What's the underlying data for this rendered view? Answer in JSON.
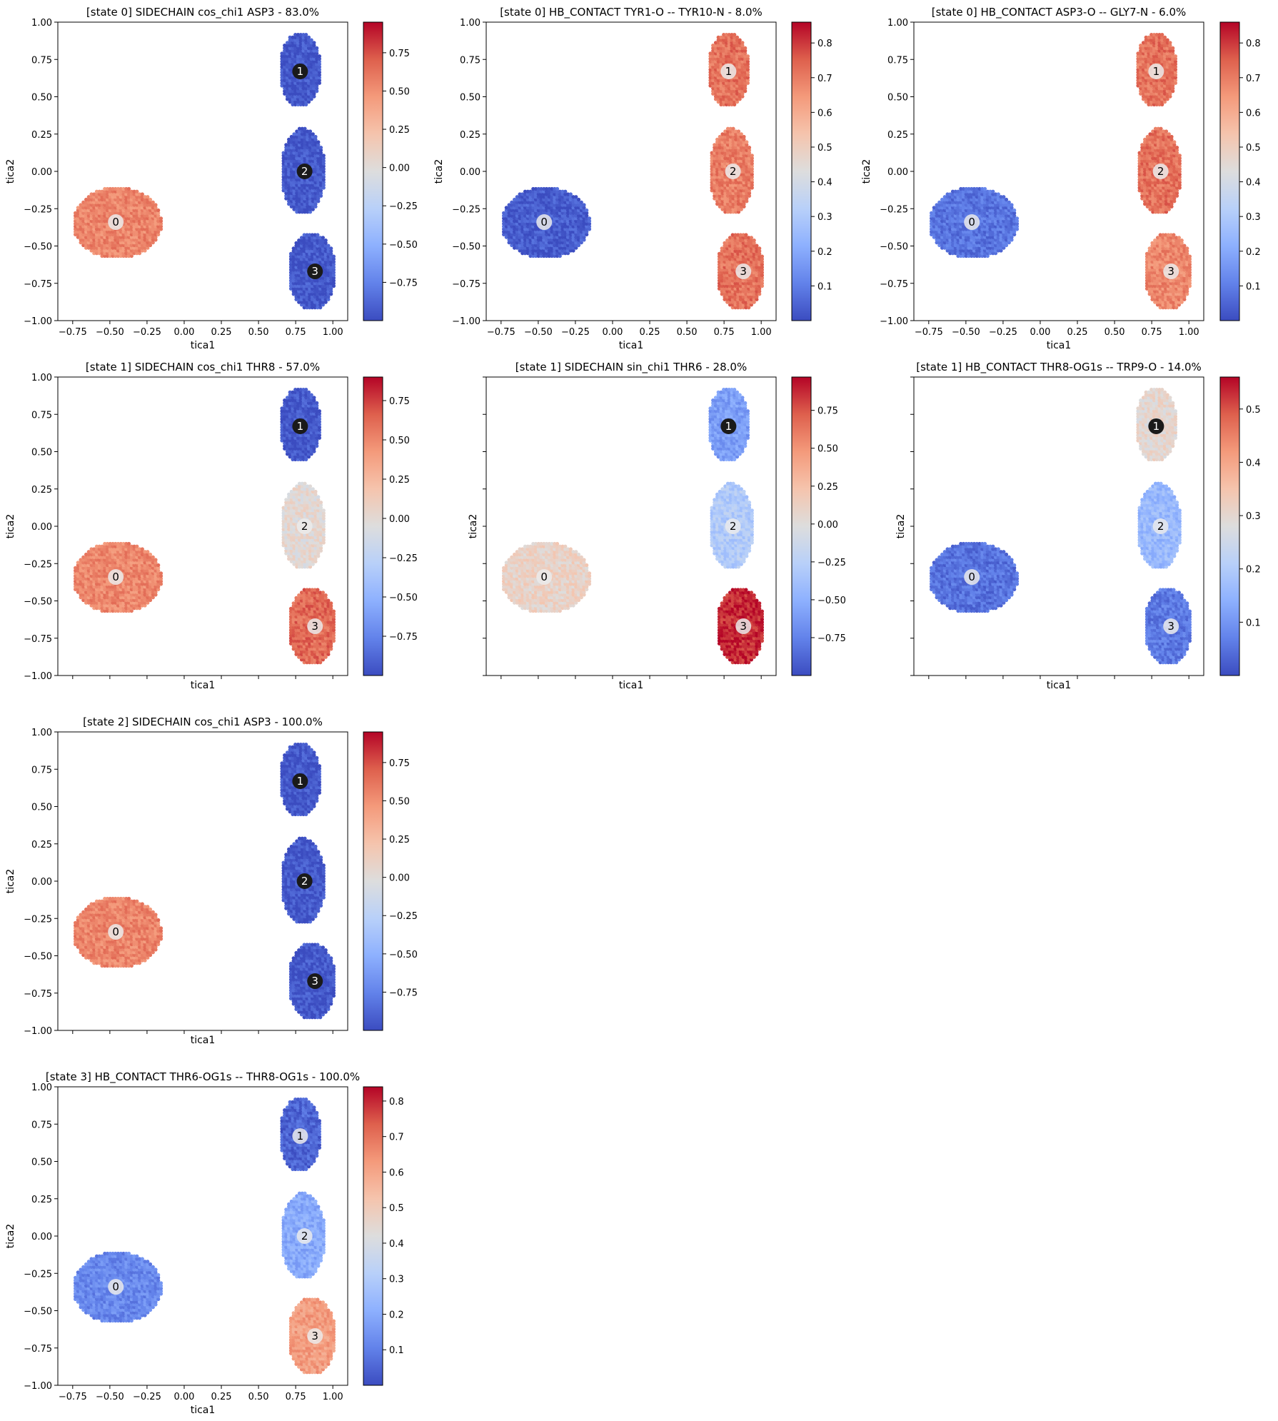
{
  "chart_data": [
    {
      "type": "scatter",
      "title": "[state 0] SIDECHAIN cos_chi1 ASP3 - 83.0%",
      "xlabel": "tica1",
      "ylabel": "tica2",
      "xlim": [
        -0.85,
        1.1
      ],
      "ylim": [
        -1.0,
        1.0
      ],
      "xticks": [
        "-0.75",
        "-0.50",
        "-0.25",
        "0.00",
        "0.25",
        "0.50",
        "0.75",
        "1.00"
      ],
      "yticks": [
        "1.00",
        "0.75",
        "0.50",
        "0.25",
        "0.00",
        "-0.25",
        "-0.50",
        "-0.75",
        "-1.00"
      ],
      "show_xticklabels": true,
      "show_yticklabels": true,
      "colorbar": {
        "min": -1.0,
        "max": 0.95,
        "ticks": [
          "-0.75",
          "-0.50",
          "-0.25",
          "0.00",
          "0.25",
          "0.50",
          "0.75"
        ]
      },
      "cluster_values": [
        0.55,
        -0.95,
        -0.95,
        -0.95
      ],
      "centers": [
        {
          "label": "0",
          "x": -0.46,
          "y": -0.34,
          "value": 0.95
        },
        {
          "label": "1",
          "x": 0.78,
          "y": 0.67,
          "value": -0.3
        },
        {
          "label": "2",
          "x": 0.81,
          "y": 0.0,
          "value": -0.3
        },
        {
          "label": "3",
          "x": 0.88,
          "y": -0.67,
          "value": -0.3
        }
      ]
    },
    {
      "type": "scatter",
      "title": "[state 0] HB_CONTACT TYR1-O -- TYR10-N - 8.0%",
      "xlabel": "tica1",
      "ylabel": "tica2",
      "xlim": [
        -0.85,
        1.1
      ],
      "ylim": [
        -1.0,
        1.0
      ],
      "xticks": [
        "-0.75",
        "-0.50",
        "-0.25",
        "0.00",
        "0.25",
        "0.50",
        "0.75",
        "1.00"
      ],
      "yticks": [
        "1.00",
        "0.75",
        "0.50",
        "0.25",
        "0.00",
        "-0.25",
        "-0.50",
        "-0.75",
        "-1.00"
      ],
      "show_xticklabels": true,
      "show_yticklabels": true,
      "colorbar": {
        "min": 0.0,
        "max": 0.86,
        "ticks": [
          "0.1",
          "0.2",
          "0.3",
          "0.4",
          "0.5",
          "0.6",
          "0.7",
          "0.8"
        ]
      },
      "cluster_values": [
        0.03,
        0.72,
        0.7,
        0.72
      ],
      "centers": [
        {
          "label": "0",
          "x": -0.46,
          "y": -0.34,
          "value": 0.0
        },
        {
          "label": "1",
          "x": 0.78,
          "y": 0.67,
          "value": 0.5
        },
        {
          "label": "2",
          "x": 0.81,
          "y": 0.0,
          "value": 0.5
        },
        {
          "label": "3",
          "x": 0.88,
          "y": -0.67,
          "value": 0.5
        }
      ]
    },
    {
      "type": "scatter",
      "title": "[state 0] HB_CONTACT ASP3-O -- GLY7-N - 6.0%",
      "xlabel": "tica1",
      "ylabel": "tica2",
      "xlim": [
        -0.85,
        1.1
      ],
      "ylim": [
        -1.0,
        1.0
      ],
      "xticks": [
        "-0.75",
        "-0.50",
        "-0.25",
        "0.00",
        "0.25",
        "0.50",
        "0.75",
        "1.00"
      ],
      "yticks": [
        "1.00",
        "0.75",
        "0.50",
        "0.25",
        "0.00",
        "-0.25",
        "-0.50",
        "-0.75",
        "-1.00"
      ],
      "show_xticklabels": true,
      "show_yticklabels": true,
      "colorbar": {
        "min": 0.0,
        "max": 0.86,
        "ticks": [
          "0.1",
          "0.2",
          "0.3",
          "0.4",
          "0.5",
          "0.6",
          "0.7",
          "0.8"
        ]
      },
      "cluster_values": [
        0.08,
        0.72,
        0.72,
        0.68
      ],
      "centers": [
        {
          "label": "0",
          "x": -0.46,
          "y": -0.34,
          "value": 0.0
        },
        {
          "label": "1",
          "x": 0.78,
          "y": 0.67,
          "value": 0.5
        },
        {
          "label": "2",
          "x": 0.81,
          "y": 0.0,
          "value": 0.5
        },
        {
          "label": "3",
          "x": 0.88,
          "y": -0.67,
          "value": 0.5
        }
      ]
    },
    {
      "type": "scatter",
      "title": "[state 1] SIDECHAIN cos_chi1 THR8 - 57.0%",
      "xlabel": "tica1",
      "ylabel": "tica2",
      "xlim": [
        -0.85,
        1.1
      ],
      "ylim": [
        -1.0,
        1.0
      ],
      "xticks": [
        "-0.75",
        "-0.50",
        "-0.25",
        "0.00",
        "0.25",
        "0.50",
        "0.75",
        "1.00"
      ],
      "yticks": [
        "1.00",
        "0.75",
        "0.50",
        "0.25",
        "0.00",
        "-0.25",
        "-0.50",
        "-0.75",
        "-1.00"
      ],
      "show_xticklabels": false,
      "show_yticklabels": true,
      "colorbar": {
        "min": -1.0,
        "max": 0.9,
        "ticks": [
          "-0.75",
          "-0.50",
          "-0.25",
          "0.00",
          "0.25",
          "0.50",
          "0.75"
        ]
      },
      "cluster_values": [
        0.5,
        -0.95,
        0.0,
        0.62
      ],
      "centers": [
        {
          "label": "0",
          "x": -0.46,
          "y": -0.34,
          "value": 0.2
        },
        {
          "label": "1",
          "x": 0.78,
          "y": 0.67,
          "value": -1.0
        },
        {
          "label": "2",
          "x": 0.81,
          "y": 0.0,
          "value": 0.0
        },
        {
          "label": "3",
          "x": 0.88,
          "y": -0.67,
          "value": 0.2
        }
      ]
    },
    {
      "type": "scatter",
      "title": "[state 1] SIDECHAIN sin_chi1 THR6 - 28.0%",
      "xlabel": "tica1",
      "ylabel": "tica2",
      "xlim": [
        -0.85,
        1.1
      ],
      "ylim": [
        -1.0,
        1.0
      ],
      "xticks": [
        "-0.75",
        "-0.50",
        "-0.25",
        "0.00",
        "0.25",
        "0.50",
        "0.75",
        "1.00"
      ],
      "yticks": [
        "1.00",
        "0.75",
        "0.50",
        "0.25",
        "0.00",
        "-0.25",
        "-0.50",
        "-0.75",
        "-1.00"
      ],
      "show_xticklabels": false,
      "show_yticklabels": false,
      "colorbar": {
        "min": -1.0,
        "max": 0.97,
        "ticks": [
          "-0.75",
          "-0.50",
          "-0.25",
          "0.00",
          "0.25",
          "0.50",
          "0.75"
        ]
      },
      "cluster_values": [
        0.1,
        -0.6,
        -0.3,
        0.88
      ],
      "centers": [
        {
          "label": "0",
          "x": -0.46,
          "y": -0.34,
          "value": 0.0
        },
        {
          "label": "1",
          "x": 0.78,
          "y": 0.67,
          "value": -1.0
        },
        {
          "label": "2",
          "x": 0.81,
          "y": 0.0,
          "value": 0.0
        },
        {
          "label": "3",
          "x": 0.88,
          "y": -0.67,
          "value": 0.0
        }
      ]
    },
    {
      "type": "scatter",
      "title": "[state 1] HB_CONTACT THR8-OG1s -- TRP9-O - 14.0%",
      "xlabel": "tica1",
      "ylabel": "tica2",
      "xlim": [
        -0.85,
        1.1
      ],
      "ylim": [
        -1.0,
        1.0
      ],
      "xticks": [
        "-0.75",
        "-0.50",
        "-0.25",
        "0.00",
        "0.25",
        "0.50",
        "0.75",
        "1.00"
      ],
      "yticks": [
        "1.00",
        "0.75",
        "0.50",
        "0.25",
        "0.00",
        "-0.25",
        "-0.50",
        "-0.75",
        "-1.00"
      ],
      "show_xticklabels": false,
      "show_yticklabels": false,
      "colorbar": {
        "min": 0.0,
        "max": 0.56,
        "ticks": [
          "0.1",
          "0.2",
          "0.3",
          "0.4",
          "0.5"
        ]
      },
      "cluster_values": [
        0.05,
        0.3,
        0.16,
        0.06
      ],
      "centers": [
        {
          "label": "0",
          "x": -0.46,
          "y": -0.34,
          "value": 0.3
        },
        {
          "label": "1",
          "x": 0.78,
          "y": 0.67,
          "value": -1.0
        },
        {
          "label": "2",
          "x": 0.81,
          "y": 0.0,
          "value": 0.3
        },
        {
          "label": "3",
          "x": 0.88,
          "y": -0.67,
          "value": 0.3
        }
      ]
    },
    {
      "type": "scatter",
      "title": "[state 2] SIDECHAIN cos_chi1 ASP3 - 100.0%",
      "xlabel": "tica1",
      "ylabel": "tica2",
      "xlim": [
        -0.85,
        1.1
      ],
      "ylim": [
        -1.0,
        1.0
      ],
      "xticks": [
        "-0.75",
        "-0.50",
        "-0.25",
        "0.00",
        "0.25",
        "0.50",
        "0.75",
        "1.00"
      ],
      "yticks": [
        "1.00",
        "0.75",
        "0.50",
        "0.25",
        "0.00",
        "-0.25",
        "-0.50",
        "-0.75",
        "-1.00"
      ],
      "show_xticklabels": false,
      "show_yticklabels": true,
      "colorbar": {
        "min": -1.0,
        "max": 0.95,
        "ticks": [
          "-0.75",
          "-0.50",
          "-0.25",
          "0.00",
          "0.25",
          "0.50",
          "0.75"
        ]
      },
      "cluster_values": [
        0.55,
        -0.95,
        -0.95,
        -0.95
      ],
      "centers": [
        {
          "label": "0",
          "x": -0.46,
          "y": -0.34,
          "value": 0.2
        },
        {
          "label": "1",
          "x": 0.78,
          "y": 0.67,
          "value": -0.3
        },
        {
          "label": "2",
          "x": 0.81,
          "y": 0.0,
          "value": -1.0
        },
        {
          "label": "3",
          "x": 0.88,
          "y": -0.67,
          "value": -0.3
        }
      ]
    },
    {
      "type": "scatter",
      "title": "[state 3] HB_CONTACT THR6-OG1s -- THR8-OG1s - 100.0%",
      "xlabel": "tica1",
      "ylabel": "tica2",
      "xlim": [
        -0.85,
        1.1
      ],
      "ylim": [
        -1.0,
        1.0
      ],
      "xticks": [
        "-0.75",
        "-0.50",
        "-0.25",
        "0.00",
        "0.25",
        "0.50",
        "0.75",
        "1.00"
      ],
      "yticks": [
        "1.00",
        "0.75",
        "0.50",
        "0.25",
        "0.00",
        "-0.25",
        "-0.50",
        "-0.75",
        "-1.00"
      ],
      "show_xticklabels": true,
      "show_yticklabels": true,
      "colorbar": {
        "min": 0.0,
        "max": 0.84,
        "ticks": [
          "0.1",
          "0.2",
          "0.3",
          "0.4",
          "0.5",
          "0.6",
          "0.7",
          "0.8"
        ]
      },
      "cluster_values": [
        0.12,
        0.05,
        0.2,
        0.62
      ],
      "centers": [
        {
          "label": "0",
          "x": -0.46,
          "y": -0.34,
          "value": 0.4
        },
        {
          "label": "1",
          "x": 0.78,
          "y": 0.67,
          "value": 0.3
        },
        {
          "label": "2",
          "x": 0.81,
          "y": 0.0,
          "value": 0.4
        },
        {
          "label": "3",
          "x": 0.88,
          "y": -0.67,
          "value": 1.0
        }
      ]
    }
  ]
}
